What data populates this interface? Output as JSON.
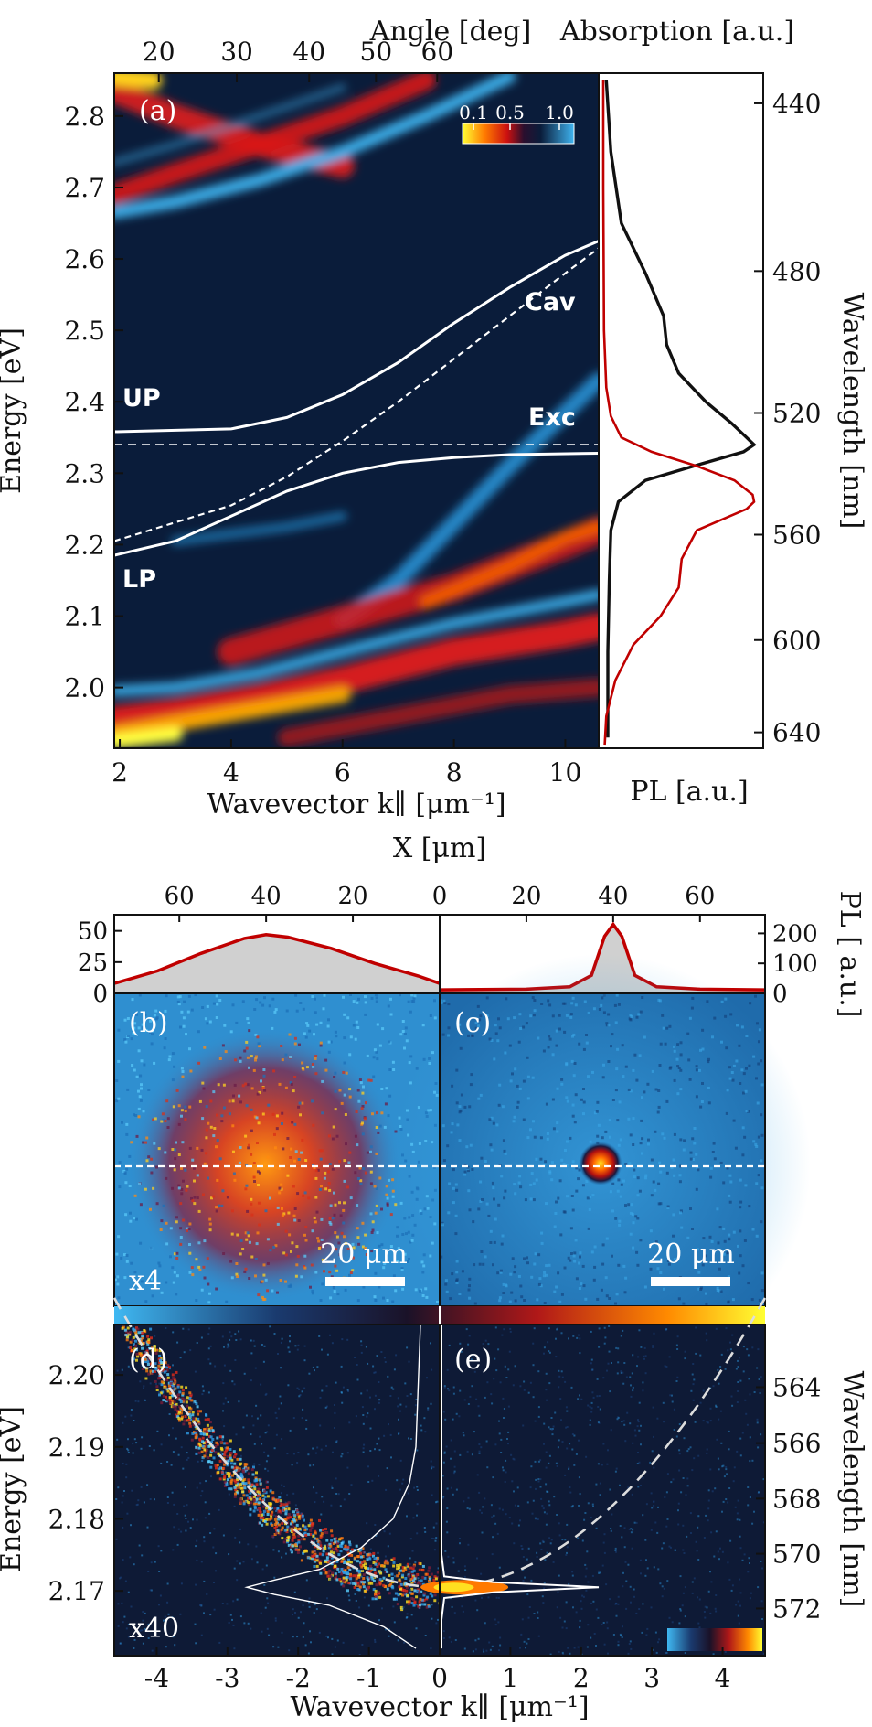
{
  "chart_data": [
    {
      "panel": "a",
      "type": "heatmap",
      "panel_label": "(a)",
      "xlabel": "Wavevector k∥ [μm⁻¹]",
      "ylabel": "Energy [eV]",
      "top_axis_label": "Angle [deg]",
      "xlim": [
        1.9,
        10.6
      ],
      "ylim": [
        1.915,
        2.86
      ],
      "xticks": [
        "2",
        "4",
        "6",
        "8",
        "10"
      ],
      "xtick_values": [
        2,
        4,
        6,
        8,
        10
      ],
      "yticks": [
        "2.0",
        "2.1",
        "2.2",
        "2.3",
        "2.4",
        "2.5",
        "2.6",
        "2.7",
        "2.8"
      ],
      "ytick_values": [
        2.0,
        2.1,
        2.2,
        2.3,
        2.4,
        2.5,
        2.6,
        2.7,
        2.8
      ],
      "top_ticks": [
        "20",
        "30",
        "40",
        "50",
        "60"
      ],
      "top_tick_positions_k": [
        2.7,
        4.1,
        5.4,
        6.6,
        7.7
      ],
      "colorbar_ticks": [
        "0.1",
        "0.5",
        "1.0"
      ],
      "labels": {
        "upper": "UP",
        "lower": "LP",
        "cavity": "Cav",
        "exciton": "Exc"
      },
      "exciton_energy": 2.34,
      "upper_polariton": {
        "k": [
          1.9,
          4,
          5,
          6,
          7,
          8,
          9,
          10,
          10.6
        ],
        "E": [
          2.358,
          2.362,
          2.378,
          2.41,
          2.455,
          2.51,
          2.56,
          2.605,
          2.625
        ]
      },
      "lower_polariton": {
        "k": [
          1.9,
          3,
          4,
          5,
          6,
          7,
          8,
          9,
          10.6
        ],
        "E": [
          2.185,
          2.205,
          2.24,
          2.275,
          2.3,
          2.315,
          2.322,
          2.326,
          2.328
        ]
      },
      "cavity_mode": {
        "k": [
          1.9,
          4,
          5,
          6,
          7,
          8,
          9,
          10,
          10.6
        ],
        "E": [
          2.205,
          2.255,
          2.295,
          2.345,
          2.4,
          2.46,
          2.52,
          2.58,
          2.615
        ]
      }
    },
    {
      "panel": "a-side",
      "type": "line",
      "top_label": "Absorption [a.u.]",
      "xlabel": "PL [a.u.]",
      "ylabel_right": "Wavelength [nm]",
      "wavelength_ticks": [
        "440",
        "480",
        "520",
        "560",
        "600",
        "640"
      ],
      "wavelength_values": [
        440,
        480,
        520,
        560,
        600,
        640
      ],
      "series": [
        {
          "name": "Absorption",
          "color": "#111111",
          "E": [
            2.85,
            2.75,
            2.65,
            2.58,
            2.52,
            2.48,
            2.44,
            2.4,
            2.37,
            2.35,
            2.34,
            2.33,
            2.31,
            2.29,
            2.26,
            2.22,
            2.15,
            2.05,
            1.93
          ],
          "values": [
            0.02,
            0.05,
            0.12,
            0.28,
            0.4,
            0.42,
            0.5,
            0.68,
            0.85,
            0.95,
            1.0,
            0.93,
            0.6,
            0.28,
            0.1,
            0.05,
            0.04,
            0.03,
            0.03
          ]
        },
        {
          "name": "PL",
          "color": "#c00000",
          "E": [
            2.85,
            2.7,
            2.5,
            2.42,
            2.38,
            2.35,
            2.33,
            2.31,
            2.29,
            2.27,
            2.26,
            2.25,
            2.22,
            2.18,
            2.14,
            2.1,
            2.06,
            2.01,
            1.96,
            1.92
          ],
          "values": [
            0.0,
            0.0,
            0.005,
            0.02,
            0.05,
            0.12,
            0.32,
            0.62,
            0.87,
            0.99,
            1.0,
            0.95,
            0.62,
            0.52,
            0.5,
            0.38,
            0.2,
            0.08,
            0.02,
            0.01
          ]
        }
      ]
    },
    {
      "panel": "b",
      "type": "heatmap",
      "panel_label": "(b)",
      "multiplier": "x4",
      "scale_bar": "20 μm",
      "spot_size": 0.3,
      "profile": {
        "x_um": [
          75,
          65,
          55,
          45,
          40,
          35,
          25,
          15,
          5,
          0
        ],
        "PL": [
          8,
          18,
          32,
          44,
          47,
          45,
          36,
          24,
          14,
          8
        ]
      },
      "profile_yticks": [
        "0",
        "25",
        "50"
      ],
      "profile_ymax": 60,
      "top_axis_ticks": [
        "60",
        "40",
        "20",
        "0"
      ]
    },
    {
      "panel": "c",
      "type": "heatmap",
      "panel_label": "(c)",
      "scale_bar": "20 μm",
      "spot_size": 0.045,
      "profile": {
        "x_um": [
          0,
          20,
          30,
          35,
          38,
          40,
          42,
          45,
          50,
          60,
          75
        ],
        "PL": [
          12,
          14,
          22,
          60,
          190,
          230,
          190,
          60,
          22,
          14,
          12
        ]
      },
      "profile_yticks": [
        "0",
        "100",
        "200"
      ],
      "profile_ymax": 250,
      "top_axis_ticks": [
        "0",
        "20",
        "40",
        "60"
      ],
      "top_axis_label": "X [μm]",
      "right_axis_label": "PL [ a.u.]"
    },
    {
      "panel": "d",
      "type": "heatmap",
      "panel_label": "(d)",
      "multiplier": "x40",
      "xlim": [
        -4.6,
        0
      ],
      "ylim": [
        2.161,
        2.207
      ],
      "yticks": [
        "2.17",
        "2.18",
        "2.19",
        "2.20"
      ],
      "ytick_values": [
        2.17,
        2.18,
        2.19,
        2.2
      ],
      "xticks": [
        "-4",
        "-3",
        "-2",
        "-1",
        "0"
      ],
      "xtick_values": [
        -4,
        -3,
        -2,
        -1,
        0
      ],
      "ylabel": "Energy [eV]",
      "dispersion": {
        "E0": 2.1705,
        "curvature": 0.0019
      }
    },
    {
      "panel": "e",
      "type": "heatmap",
      "panel_label": "(e)",
      "xlim": [
        0,
        4.6
      ],
      "xticks": [
        "1",
        "2",
        "3",
        "4"
      ],
      "xtick_values": [
        1,
        2,
        3,
        4
      ],
      "xlabel": "Wavevector k∥ [μm⁻¹]",
      "ylabel_right": "Wavelength [nm]",
      "wavelength_ticks": [
        "564",
        "566",
        "568",
        "570",
        "572"
      ],
      "wavelength_values": [
        564,
        566,
        568,
        570,
        572
      ]
    }
  ]
}
